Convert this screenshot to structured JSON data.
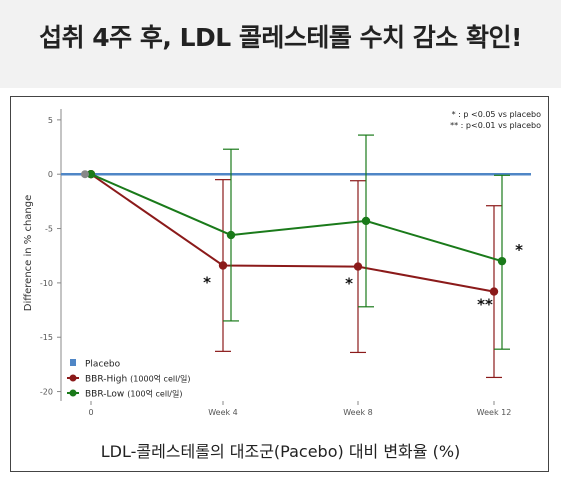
{
  "headline": "섭취 4주 후, LDL 콜레스테롤 수치 감소 확인!",
  "caption": "LDL-콜레스테롤의 대조군(Pacebo) 대비 변화율 (%)",
  "chart_data": {
    "type": "line",
    "title": "",
    "xlabel": "",
    "ylabel": "Difference in % change",
    "categories": [
      "0",
      "Week 4",
      "Week 8",
      "Week 12"
    ],
    "ylim": [
      -20.5,
      6
    ],
    "yticks": [
      5,
      0,
      -5,
      -10,
      -15,
      -20
    ],
    "grid": false,
    "legend_position": "bottom-left",
    "significance_note": [
      "* : p <0.05 vs placebo",
      "** : p<0.01 vs placebo"
    ],
    "series": [
      {
        "name": "Placebo",
        "color": "#4f86c6",
        "values": [
          0,
          0,
          0,
          0
        ]
      },
      {
        "name": "BBR-High",
        "name_suffix": "(1000억 cell/일)",
        "color": "#8b1a1a",
        "values": [
          0,
          -8.4,
          -8.5,
          -10.8
        ],
        "error_low": [
          null,
          -16.3,
          -16.4,
          -18.7
        ],
        "error_high": [
          null,
          -0.5,
          -0.6,
          -2.9
        ],
        "markers": [
          "",
          "*",
          "*",
          "**"
        ]
      },
      {
        "name": "BBR-Low",
        "name_suffix": "(100억 cell/일)",
        "color": "#1a7a1a",
        "values": [
          0,
          -5.6,
          -4.3,
          -8.0
        ],
        "error_low": [
          null,
          -13.5,
          -12.2,
          -16.1
        ],
        "error_high": [
          null,
          2.3,
          3.6,
          -0.1
        ],
        "markers": [
          "",
          "",
          "",
          "*"
        ]
      }
    ]
  }
}
